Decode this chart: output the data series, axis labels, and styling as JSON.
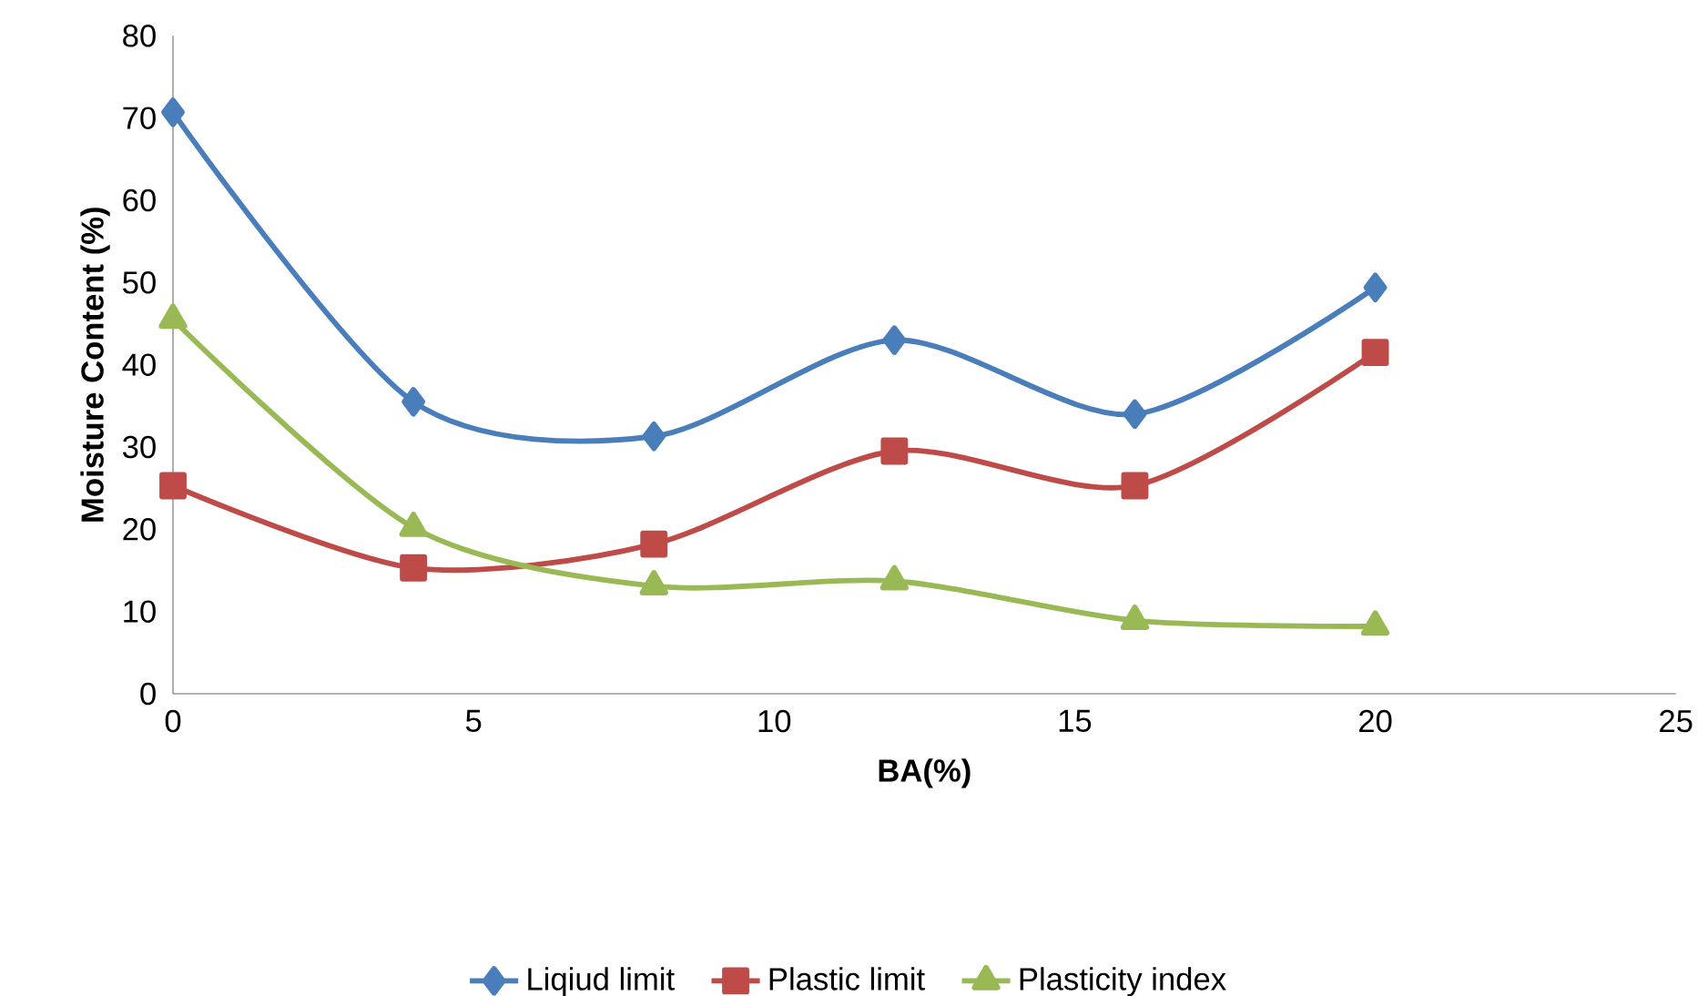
{
  "chart_data": {
    "type": "line",
    "xlabel": "BA(%)",
    "ylabel": "Moisture Content (%)",
    "x": [
      0,
      4,
      8,
      12,
      16,
      20
    ],
    "series": [
      {
        "name": "Liqiud limit",
        "color": "#4a7ebb",
        "marker": "diamond",
        "values": [
          70.7,
          35.5,
          31.3,
          43,
          34,
          49.4
        ]
      },
      {
        "name": "Plastic limit",
        "color": "#be4b48",
        "marker": "square",
        "values": [
          25.3,
          15.3,
          18.2,
          29.5,
          25.3,
          41.5
        ]
      },
      {
        "name": "Plasticity index",
        "color": "#98b954",
        "marker": "triangle",
        "values": [
          45.5,
          20.2,
          13.1,
          13.7,
          8.9,
          8.2
        ]
      }
    ],
    "xlim": [
      0,
      25
    ],
    "xticks": [
      0,
      5,
      10,
      15,
      20,
      25
    ],
    "ylim": [
      0,
      80
    ],
    "yticks": [
      0,
      10,
      20,
      30,
      40,
      50,
      60,
      70,
      80
    ],
    "grid": false,
    "legend": "bottom",
    "line_style": "solid"
  }
}
